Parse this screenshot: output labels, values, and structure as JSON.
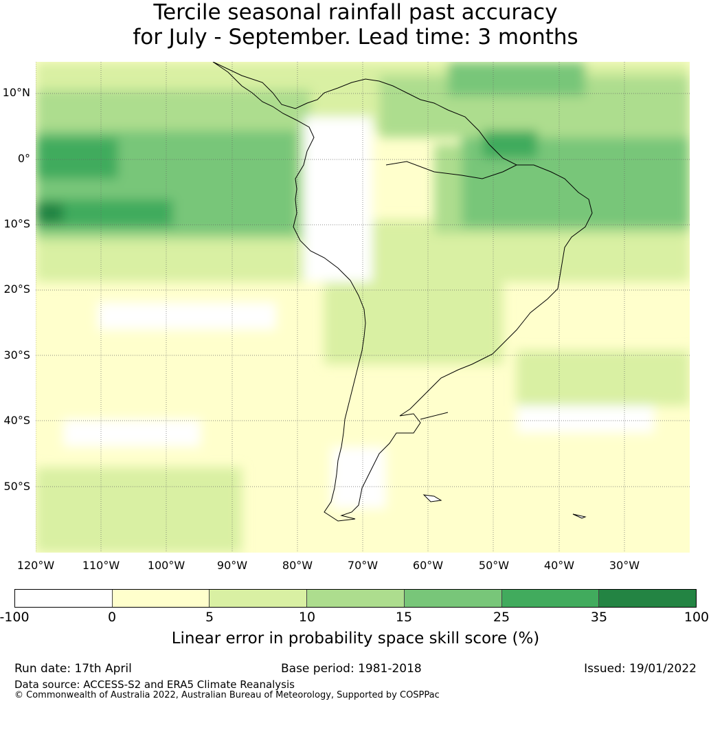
{
  "title_line1": "Tercile seasonal rainfall past accuracy",
  "title_line2": "for July - September. Lead time: 3 months",
  "lat_labels": [
    "10°N",
    "0°",
    "10°S",
    "20°S",
    "30°S",
    "40°S",
    "50°S"
  ],
  "lon_labels": [
    "120°W",
    "110°W",
    "100°W",
    "90°W",
    "80°W",
    "70°W",
    "60°W",
    "50°W",
    "40°W",
    "30°W"
  ],
  "colorbar": {
    "ticks": [
      "-100",
      "0",
      "5",
      "10",
      "15",
      "25",
      "35",
      "100"
    ],
    "colors": [
      "#ffffff",
      "#ffffcc",
      "#d9f0a3",
      "#addd8e",
      "#78c679",
      "#41ab5d",
      "#238443"
    ],
    "label": "Linear error in probability space skill score (%)"
  },
  "footer": {
    "run_date": "Run date: 17th April",
    "base_period": "Base period: 1981-2018",
    "issued": "Issued: 19/01/2022",
    "data_source": "Data source: ACCESS-S2 and ERA5 Climate Reanalysis",
    "copyright": "© Commonwealth of Australia 2022, Australian Bureau of Meteorology, Supported by COSPPac"
  }
}
